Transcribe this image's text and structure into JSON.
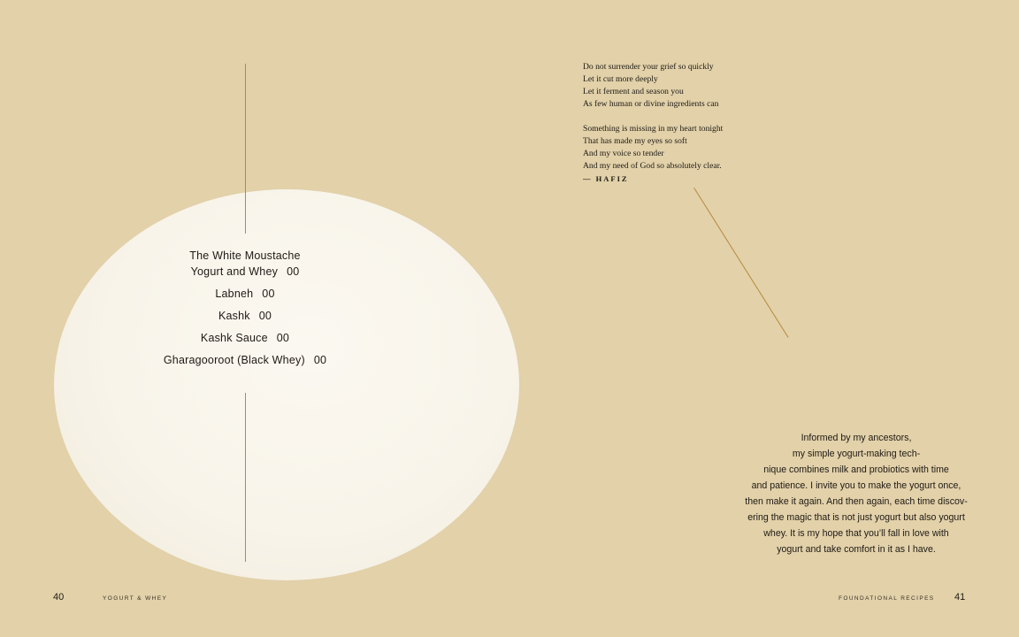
{
  "left_page": {
    "contents": [
      {
        "title": "The White Moustache Yogurt and Whey",
        "title_line1": "The White Moustache",
        "title_line2": "Yogurt and Whey",
        "page": "00"
      },
      {
        "title": "Labneh",
        "page": "00"
      },
      {
        "title": "Kashk",
        "page": "00"
      },
      {
        "title": "Kashk Sauce",
        "page": "00"
      },
      {
        "title": "Gharagooroot (Black Whey)",
        "page": "00"
      }
    ],
    "page_number": "40",
    "running_head": "Yogurt & Whey"
  },
  "right_page": {
    "poem": {
      "stanza1": [
        "Do not surrender your grief so quickly",
        "Let it cut more deeply",
        "Let it ferment and season you",
        "As few human or divine ingredients can"
      ],
      "stanza2": [
        "Something is missing in my heart tonight",
        "That has made my eyes so soft",
        "And my voice so tender",
        "And my need of God so absolutely clear."
      ],
      "attribution": "— HAFIZ"
    },
    "intro_lines": [
      "Informed by my ancestors,",
      "my simple yogurt-making tech-",
      "nique combines milk and probiotics with time",
      "and patience. I invite you to make the yogurt once,",
      "then make it again. And then again, each time discov-",
      "ering the magic that is not just yogurt but also yogurt",
      "whey. It is my hope that you’ll fall in love with",
      "yogurt and take comfort in it as I have."
    ],
    "page_number": "41",
    "running_head": "Foundational Recipes"
  },
  "colors": {
    "background": "#e2d1a9",
    "plate": "#f8f4ea",
    "accent_line": "#b68a3c",
    "text": "#1f1a14"
  }
}
